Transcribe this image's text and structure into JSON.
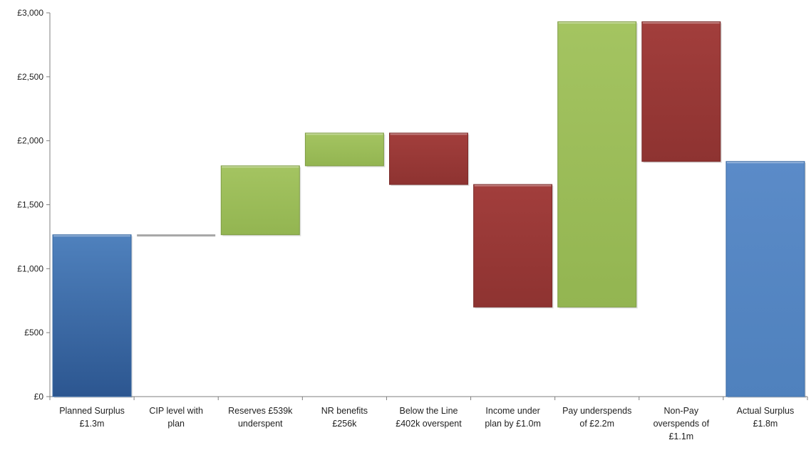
{
  "chart_data": {
    "type": "bar",
    "subtype": "waterfall",
    "title": "",
    "xlabel": "",
    "ylabel": "",
    "ylim": [
      0,
      3000
    ],
    "yticks": [
      "£0",
      "£500",
      "£1,000",
      "£1,500",
      "£2,000",
      "£2,500",
      "£3,000"
    ],
    "ytick_values": [
      0,
      500,
      1000,
      1500,
      2000,
      2500,
      3000
    ],
    "grid": false,
    "legend": "none",
    "categories": [
      [
        "Planned Surplus",
        "£1.3m"
      ],
      [
        "CIP level with",
        "plan"
      ],
      [
        "Reserves £539k",
        "underspent"
      ],
      [
        "NR benefits",
        "£256k"
      ],
      [
        "Below the Line",
        "£402k overspent"
      ],
      [
        "Income under",
        "plan by £1.0m"
      ],
      [
        "Pay underspends",
        "of £2.2m"
      ],
      [
        "Non-Pay",
        "overspends of",
        "£1.1m"
      ],
      [
        "Actual Surplus",
        "£1.8m"
      ]
    ],
    "bars": [
      {
        "start": 0,
        "end": 1265,
        "kind": "total"
      },
      {
        "start": 1260,
        "end": 1260,
        "kind": "neutral"
      },
      {
        "start": 1265,
        "end": 1804,
        "kind": "increase"
      },
      {
        "start": 1804,
        "end": 2060,
        "kind": "increase"
      },
      {
        "start": 2060,
        "end": 1658,
        "kind": "decrease"
      },
      {
        "start": 1658,
        "end": 700,
        "kind": "decrease"
      },
      {
        "start": 700,
        "end": 2930,
        "kind": "increase"
      },
      {
        "start": 2930,
        "end": 1838,
        "kind": "decrease"
      },
      {
        "start": 0,
        "end": 1838,
        "kind": "total"
      }
    ],
    "colors": {
      "total": "#4f81bd",
      "total_dark": "#2c5690",
      "increase": "#9bbb59",
      "decrease": "#953735",
      "neutral": "#a6a6a6",
      "axis": "#7f7f7f"
    }
  }
}
